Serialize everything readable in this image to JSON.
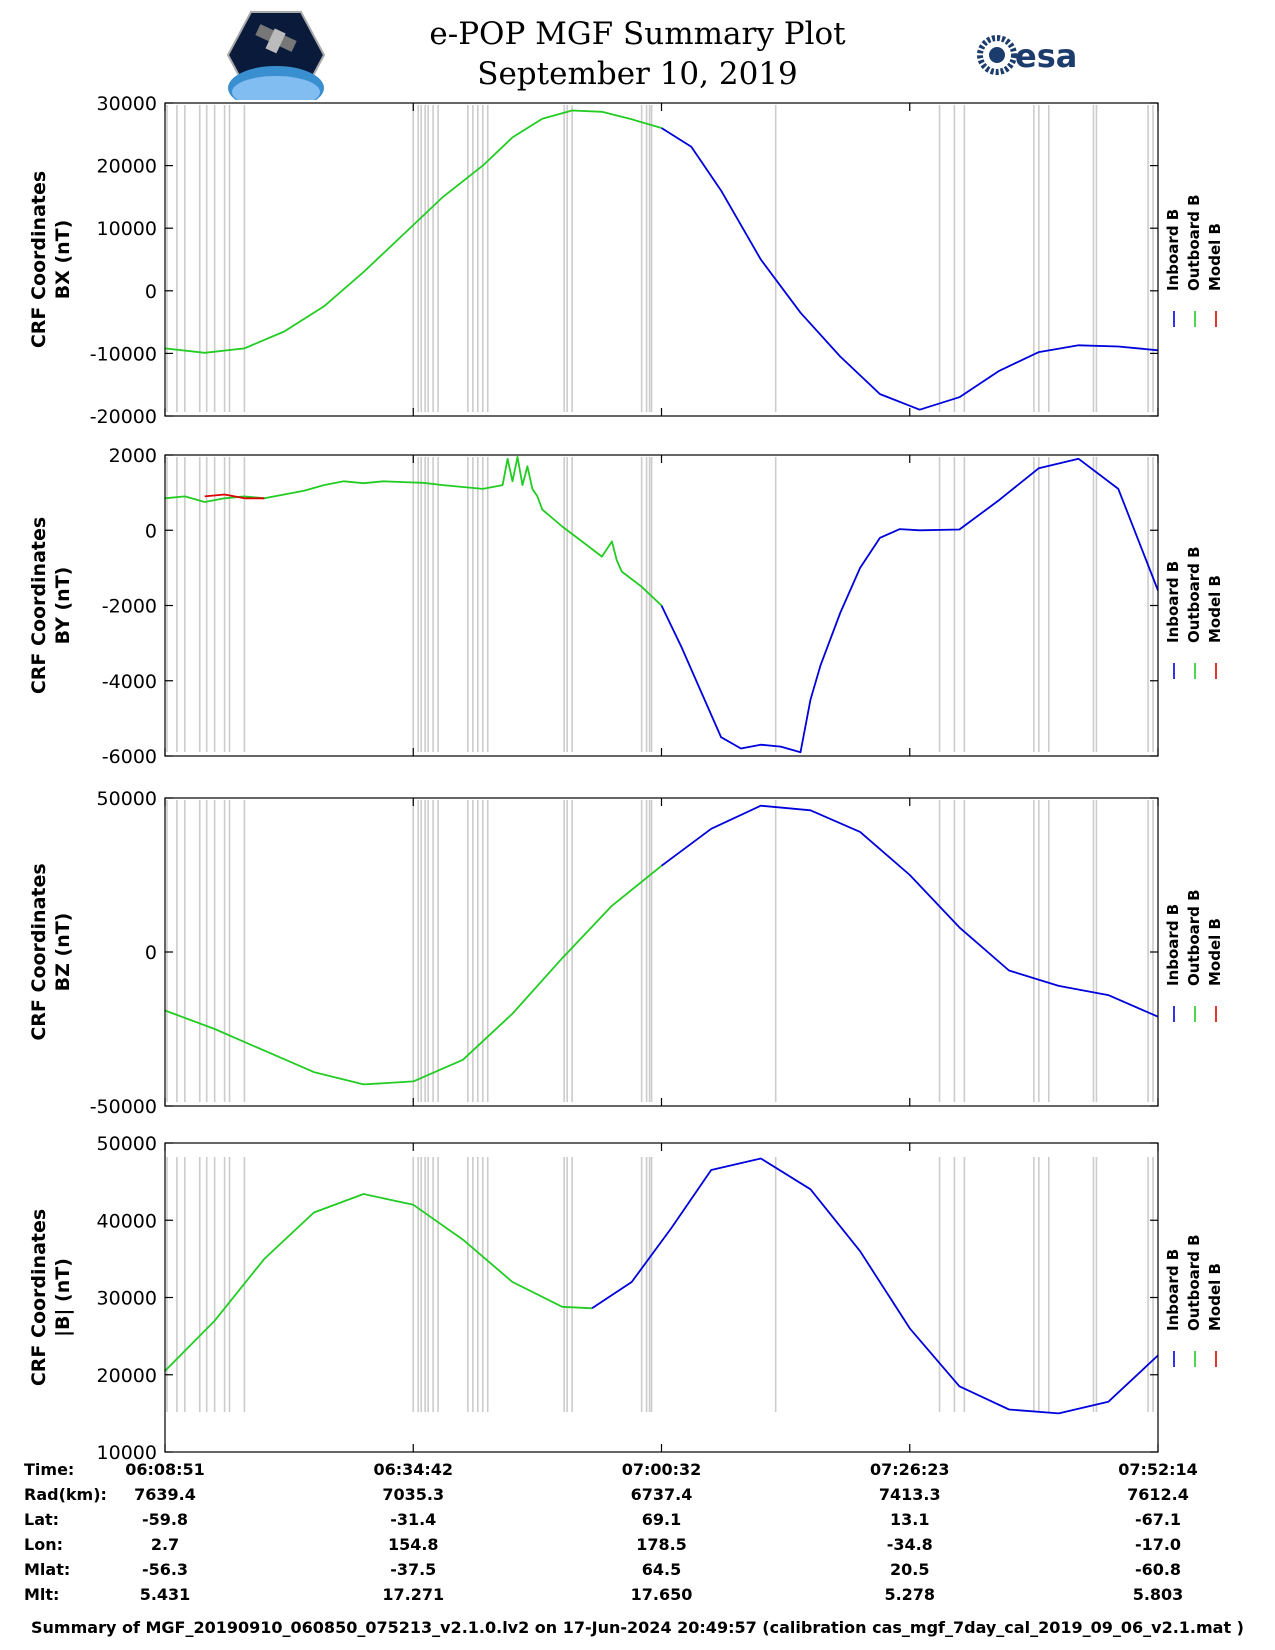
{
  "header": {
    "title_line1": "e-POP MGF Summary Plot",
    "title_line2": "September 10, 2019",
    "logo_left": "cassiope-logo",
    "logo_right_text": "esa"
  },
  "colors": {
    "inboard": "#0000dd",
    "outboard": "#22cc22",
    "model": "#dd0000",
    "gaps": "#cccccc"
  },
  "chart_data": [
    {
      "type": "line",
      "id": "bx",
      "ylabel_line1": "CRF Coordinates",
      "ylabel_line2": "BX (nT)",
      "ylim": [
        -20000,
        30000
      ],
      "yticks": [
        "30000",
        "20000",
        "10000",
        "0",
        "-10000",
        "-20000"
      ],
      "ytick_values": [
        30000,
        20000,
        10000,
        0,
        -10000,
        -20000
      ],
      "legend": [
        "Inboard B",
        "Outboard B",
        "Model B"
      ],
      "series": [
        {
          "name": "Outboard B",
          "color_key": "outboard",
          "x": [
            0.0,
            0.04,
            0.08,
            0.12,
            0.16,
            0.2,
            0.24,
            0.28,
            0.32,
            0.35,
            0.38,
            0.41,
            0.44,
            0.47,
            0.5
          ],
          "y": [
            -9200,
            -9900,
            -9200,
            -6500,
            -2500,
            3000,
            9000,
            15000,
            20000,
            24500,
            27500,
            28800,
            28600,
            27400,
            26000
          ]
        },
        {
          "name": "Inboard B",
          "color_key": "inboard",
          "x": [
            0.5,
            0.53,
            0.56,
            0.6,
            0.64,
            0.68,
            0.72,
            0.76,
            0.8,
            0.84,
            0.88,
            0.92,
            0.96,
            1.0
          ],
          "y": [
            26000,
            23000,
            16000,
            5000,
            -3500,
            -10500,
            -16500,
            -19000,
            -17000,
            -12800,
            -9800,
            -8700,
            -8900,
            -9500
          ]
        }
      ]
    },
    {
      "type": "line",
      "id": "by",
      "ylabel_line1": "CRF Coordinates",
      "ylabel_line2": "BY (nT)",
      "ylim": [
        -6000,
        2000
      ],
      "yticks": [
        "2000",
        "0",
        "-2000",
        "-4000",
        "-6000"
      ],
      "ytick_values": [
        2000,
        0,
        -2000,
        -4000,
        -6000
      ],
      "legend": [
        "Inboard B",
        "Outboard B",
        "Model B"
      ],
      "series": [
        {
          "name": "Outboard B",
          "color_key": "outboard",
          "x": [
            0.0,
            0.02,
            0.04,
            0.06,
            0.08,
            0.1,
            0.12,
            0.14,
            0.16,
            0.18,
            0.2,
            0.22,
            0.24,
            0.26,
            0.28,
            0.3,
            0.32,
            0.34,
            0.345,
            0.35,
            0.355,
            0.36,
            0.365,
            0.37,
            0.375,
            0.38,
            0.4,
            0.42,
            0.44,
            0.45,
            0.455,
            0.46,
            0.48,
            0.5
          ],
          "y": [
            850,
            900,
            750,
            850,
            900,
            850,
            950,
            1050,
            1200,
            1300,
            1250,
            1300,
            1280,
            1260,
            1200,
            1150,
            1100,
            1200,
            1900,
            1300,
            1950,
            1200,
            1700,
            1100,
            900,
            550,
            100,
            -300,
            -700,
            -300,
            -800,
            -1100,
            -1500,
            -2000
          ]
        },
        {
          "name": "Inboard B",
          "color_key": "inboard",
          "x": [
            0.5,
            0.52,
            0.54,
            0.56,
            0.58,
            0.6,
            0.62,
            0.64,
            0.645,
            0.65,
            0.66,
            0.68,
            0.7,
            0.72,
            0.74,
            0.76,
            0.8,
            0.84,
            0.88,
            0.92,
            0.96,
            1.0
          ],
          "y": [
            -2000,
            -3100,
            -4300,
            -5500,
            -5800,
            -5700,
            -5750,
            -5900,
            -5200,
            -4500,
            -3600,
            -2200,
            -1000,
            -200,
            30,
            0,
            20,
            800,
            1650,
            1900,
            1100,
            -1600
          ]
        },
        {
          "name": "Model B",
          "color_key": "model",
          "x": [
            0.04,
            0.06,
            0.08,
            0.1
          ],
          "y": [
            900,
            950,
            850,
            850
          ]
        }
      ]
    },
    {
      "type": "line",
      "id": "bz",
      "ylabel_line1": "CRF Coordinates",
      "ylabel_line2": "BZ (nT)",
      "ylim": [
        -50000,
        50000
      ],
      "yticks": [
        "50000",
        "0",
        "-50000"
      ],
      "ytick_values": [
        50000,
        0,
        -50000
      ],
      "legend": [
        "Inboard B",
        "Outboard B",
        "Model B"
      ],
      "series": [
        {
          "name": "Outboard B",
          "color_key": "outboard",
          "x": [
            0.0,
            0.05,
            0.1,
            0.15,
            0.2,
            0.25,
            0.3,
            0.35,
            0.4,
            0.45,
            0.5
          ],
          "y": [
            -19000,
            -25000,
            -32000,
            -39000,
            -43000,
            -42000,
            -35000,
            -20000,
            -2000,
            15000,
            28000
          ]
        },
        {
          "name": "Inboard B",
          "color_key": "inboard",
          "x": [
            0.5,
            0.55,
            0.6,
            0.65,
            0.7,
            0.75,
            0.8,
            0.85,
            0.9,
            0.95,
            1.0
          ],
          "y": [
            28000,
            40000,
            47500,
            46000,
            39000,
            25000,
            8000,
            -6000,
            -11000,
            -14000,
            -21000
          ]
        }
      ]
    },
    {
      "type": "line",
      "id": "bmag",
      "ylabel_line1": "CRF Coordinates",
      "ylabel_line2": "|B| (nT)",
      "ylim": [
        10000,
        50000
      ],
      "yticks": [
        "50000",
        "40000",
        "30000",
        "20000",
        "10000"
      ],
      "ytick_values": [
        50000,
        40000,
        30000,
        20000,
        10000
      ],
      "legend": [
        "Inboard B",
        "Outboard B",
        "Model B"
      ],
      "series": [
        {
          "name": "Outboard B",
          "color_key": "outboard",
          "x": [
            0.0,
            0.05,
            0.1,
            0.15,
            0.2,
            0.25,
            0.3,
            0.35,
            0.4,
            0.43
          ],
          "y": [
            20500,
            27000,
            35000,
            41000,
            43400,
            42000,
            37500,
            32000,
            28800,
            28600
          ]
        },
        {
          "name": "Inboard B",
          "color_key": "inboard",
          "x": [
            0.43,
            0.47,
            0.51,
            0.55,
            0.6,
            0.65,
            0.7,
            0.75,
            0.8,
            0.85,
            0.9,
            0.95,
            1.0
          ],
          "y": [
            28600,
            32000,
            39000,
            46500,
            48000,
            44000,
            36000,
            26000,
            18500,
            15500,
            15000,
            16500,
            22500
          ]
        }
      ]
    }
  ],
  "data_gaps_fraction": [
    0.002,
    0.012,
    0.02,
    0.035,
    0.042,
    0.05,
    0.06,
    0.065,
    0.08,
    0.25,
    0.255,
    0.258,
    0.262,
    0.265,
    0.27,
    0.275,
    0.305,
    0.31,
    0.315,
    0.32,
    0.325,
    0.402,
    0.405,
    0.41,
    0.48,
    0.485,
    0.488,
    0.49,
    0.615,
    0.78,
    0.795,
    0.805,
    0.875,
    0.88,
    0.89,
    0.935,
    0.938,
    0.99,
    0.995
  ],
  "time_axis": {
    "ticks_fraction": [
      0.0,
      0.25,
      0.5,
      0.75,
      1.0
    ]
  },
  "footer": {
    "labels": [
      "Time:",
      "Rad(km):",
      "Lat:",
      "Lon:",
      "Mlat:",
      "Mlt:"
    ],
    "columns": [
      [
        "06:08:51",
        "7639.4",
        "-59.8",
        "2.7",
        "-56.3",
        "5.431"
      ],
      [
        "06:34:42",
        "7035.3",
        "-31.4",
        "154.8",
        "-37.5",
        "17.271"
      ],
      [
        "07:00:32",
        "6737.4",
        "69.1",
        "178.5",
        "64.5",
        "17.650"
      ],
      [
        "07:26:23",
        "7413.3",
        "13.1",
        "-34.8",
        "20.5",
        "5.278"
      ],
      [
        "07:52:14",
        "7612.4",
        "-67.1",
        "-17.0",
        "-60.8",
        "5.803"
      ]
    ],
    "note": "Summary of MGF_20190910_060850_075213_v2.1.0.lv2 on 17-Jun-2024 20:49:57 (calibration cas_mgf_7day_cal_2019_09_06_v2.1.mat )"
  }
}
